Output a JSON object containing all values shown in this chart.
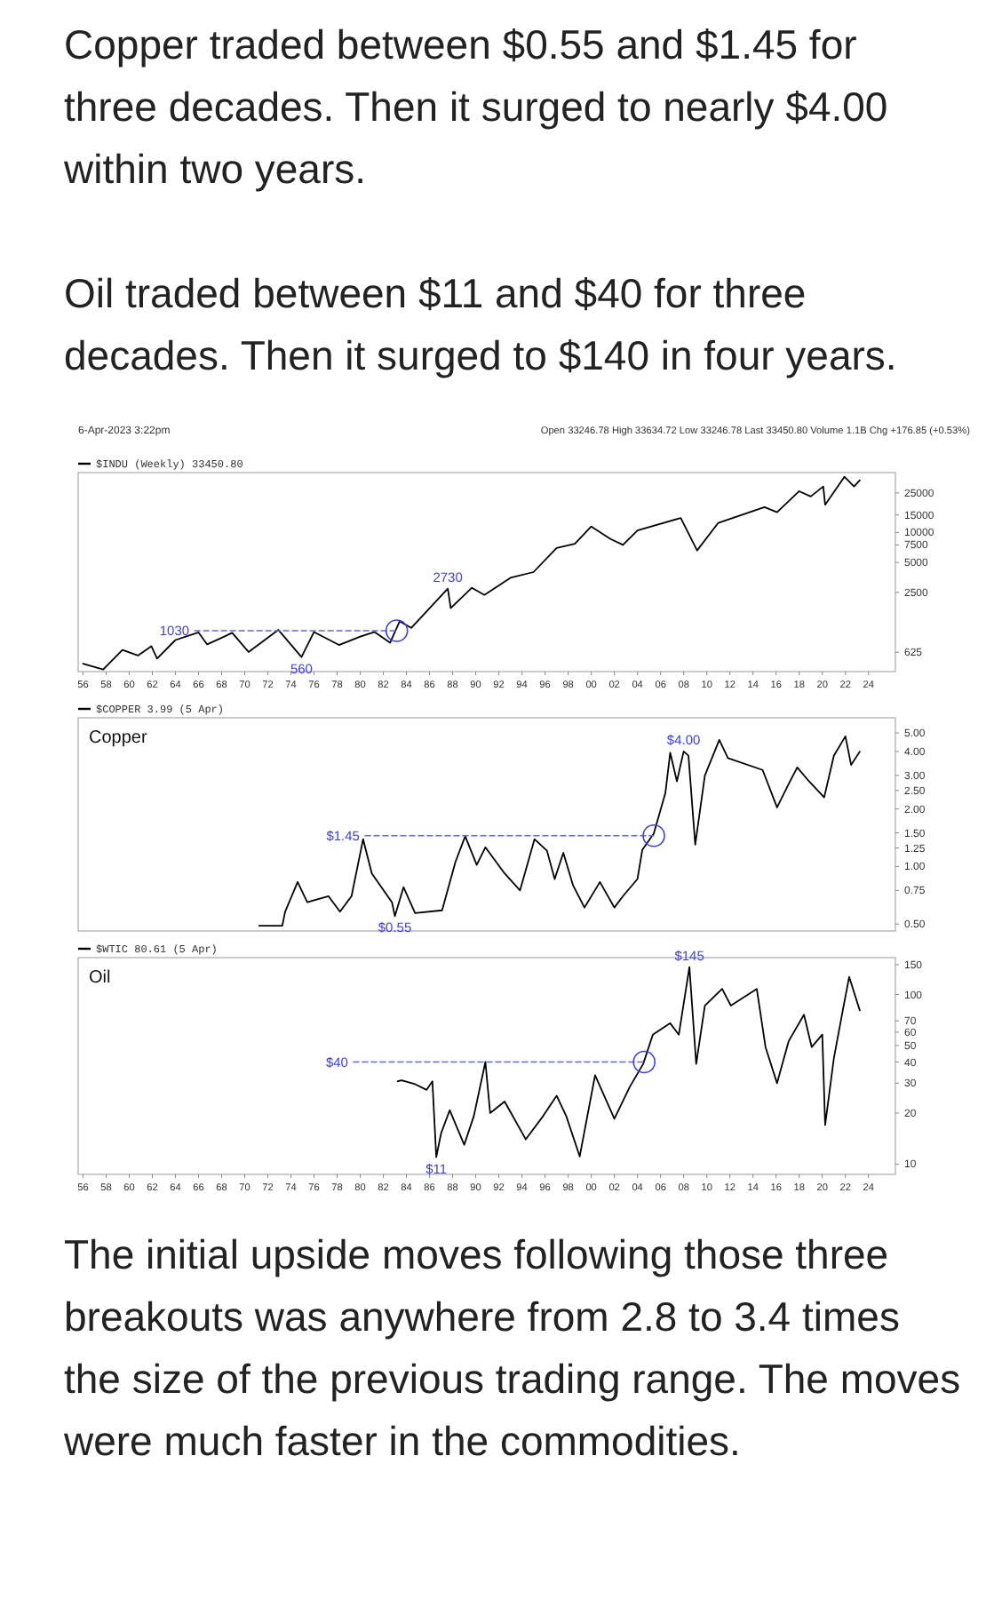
{
  "chart_data": [
    {
      "type": "line",
      "title": "Copper traded between $0.55 and $1.45 for three decades. Then it surged to nearly $4.00 within two years.",
      "subtitle": "Oil traded between $11 and $40 for three decades. Then it surged to $140 in four years.",
      "log": true,
      "legend": "top left",
      "xlim": [
        "1955-08",
        "2026-05"
      ],
      "xticks": [
        {
          "value": "1956",
          "label": "56"
        },
        {
          "value": "1958",
          "label": "58"
        },
        {
          "value": "1960",
          "label": "60"
        },
        {
          "value": "1962",
          "label": "62"
        },
        {
          "value": "1964",
          "label": "64"
        },
        {
          "value": "1966",
          "label": "66"
        },
        {
          "value": "1968",
          "label": "68"
        },
        {
          "value": "1970",
          "label": "70"
        },
        {
          "value": "1972",
          "label": "72"
        },
        {
          "value": "1974",
          "label": "74"
        },
        {
          "value": "1976",
          "label": "76"
        },
        {
          "value": "1978",
          "label": "78"
        },
        {
          "value": "1980",
          "label": "80"
        },
        {
          "value": "1982",
          "label": "82"
        },
        {
          "value": "1984",
          "label": "84"
        },
        {
          "value": "1986",
          "label": "86"
        },
        {
          "value": "1988",
          "label": "88"
        },
        {
          "value": "1990",
          "label": "90"
        },
        {
          "value": "1992",
          "label": "92"
        },
        {
          "value": "1994",
          "label": "94"
        },
        {
          "value": "1996",
          "label": "96"
        },
        {
          "value": "1998",
          "label": "98"
        },
        {
          "value": "2000",
          "label": "00"
        },
        {
          "value": "2002",
          "label": "02"
        },
        {
          "value": "2004",
          "label": "04"
        },
        {
          "value": "2006",
          "label": "06"
        },
        {
          "value": "2008",
          "label": "08"
        },
        {
          "value": "2010",
          "label": "10"
        },
        {
          "value": "2012",
          "label": "12"
        },
        {
          "value": "2014",
          "label": "14"
        },
        {
          "value": "2016",
          "label": "16"
        },
        {
          "value": "2018",
          "label": "18"
        },
        {
          "value": "2020",
          "label": "20"
        },
        {
          "value": "2022",
          "label": "22"
        },
        {
          "value": "2024",
          "label": "24"
        }
      ],
      "ylim": [
        400,
        40000
      ],
      "yticks": [
        625,
        2500,
        5000,
        7500,
        10000,
        15000,
        25000
      ],
      "series": [
        {
          "name": "$INDU (Weekly) 33450.80",
          "color": "#000000",
          "x": [
            "1956-01",
            "1957-10",
            "1959-06",
            "1960-10",
            "1961-12",
            "1962-06",
            "1964-01",
            "1966-01",
            "1966-10",
            "1968-12",
            "1970-05",
            "1972-12",
            "1974-12",
            "1976-01",
            "1978-03",
            "1980-01",
            "1981-04",
            "1982-08",
            "1983-06",
            "1984-06",
            "1987-08",
            "1987-11",
            "1989-09",
            "1990-10",
            "1993-01",
            "1995-01",
            "1997-01",
            "1998-08",
            "2000-01",
            "2001-09",
            "2002-10",
            "2004-01",
            "2007-10",
            "2009-03",
            "2011-01",
            "2015-01",
            "2016-02",
            "2018-01",
            "2019-01",
            "2020-02",
            "2020-04",
            "2021-12",
            "2022-10",
            "2023-04"
          ],
          "values": [
            480,
            420,
            660,
            580,
            720,
            540,
            830,
            990,
            750,
            980,
            630,
            1050,
            560,
            1000,
            740,
            900,
            1000,
            780,
            1280,
            1100,
            2730,
            1740,
            2780,
            2360,
            3500,
            4000,
            7000,
            7700,
            11500,
            8600,
            7500,
            10500,
            14000,
            6600,
            12500,
            18000,
            16000,
            26000,
            23000,
            29000,
            19000,
            36300,
            29000,
            33450
          ]
        },
        {
          "color": "#6666ee",
          "line_style": "dashed",
          "x": [
            "1965-09",
            "1983-03"
          ],
          "values": [
            1030,
            1030
          ]
        }
      ],
      "annotations": [
        "6-Apr-2023 3:22pm",
        "Open 33246.78 High 33634.72 Low 33246.78 Last 33450.80 Volume 1.1B Chg +176.85 (+0.53%)",
        {
          "text": "1030",
          "x": "1965-09",
          "y": 1030
        },
        {
          "text": "560",
          "x": "1974-12",
          "y": 560
        },
        {
          "text": "2730",
          "x": "1987-08",
          "y": 2730
        }
      ]
    },
    {
      "type": "line",
      "title": "Copper",
      "log": true,
      "legend": "top left",
      "tick_labels": "y",
      "xlim": [
        "1955-08",
        "2026-05"
      ],
      "ylim": [
        0.46,
        6.0
      ],
      "yticks": [
        {
          "value": 0.5,
          "label": "0.50"
        },
        {
          "value": 0.75,
          "label": "0.75"
        },
        {
          "value": 1,
          "label": "1.00"
        },
        {
          "value": 1.25,
          "label": "1.25"
        },
        {
          "value": 1.5,
          "label": "1.50"
        },
        {
          "value": 2,
          "label": "2.00"
        },
        {
          "value": 2.5,
          "label": "2.50"
        },
        {
          "value": 3,
          "label": "3.00"
        },
        {
          "value": 4,
          "label": "4.00"
        },
        {
          "value": 5,
          "label": "5.00"
        }
      ],
      "series": [
        {
          "name": "$COPPER 3.99 (5 Apr)",
          "color": "#000000",
          "x": [
            "1971-04",
            "1973-04",
            "1973-07",
            "1974-08",
            "1975-06",
            "1977-04",
            "1978-04",
            "1979-04",
            "1980-04",
            "1981-01",
            "1982-10",
            "1983-01",
            "1983-10",
            "1984-10",
            "1987-02",
            "1988-04",
            "1989-02",
            "1990-02",
            "1990-11",
            "1992-07",
            "1993-11",
            "1995-02",
            "1996-03",
            "1996-11",
            "1997-08",
            "1998-06",
            "1999-06",
            "2000-10",
            "2002-01",
            "2002-10",
            "2004-01",
            "2004-06",
            "2005-06",
            "2006-06",
            "2006-11",
            "2007-06",
            "2008-01",
            "2008-06",
            "2009-01",
            "2009-11",
            "2011-02",
            "2011-11",
            "2014-11",
            "2016-02",
            "2017-02",
            "2017-11",
            "2018-11",
            "2020-03",
            "2021-01",
            "2022-01",
            "2022-07",
            "2023-04"
          ],
          "values": [
            0.49,
            0.49,
            0.58,
            0.83,
            0.65,
            0.7,
            0.58,
            0.7,
            1.39,
            0.92,
            0.65,
            0.55,
            0.78,
            0.57,
            0.59,
            1.06,
            1.44,
            1.02,
            1.26,
            0.92,
            0.75,
            1.39,
            1.21,
            0.86,
            1.18,
            0.8,
            0.61,
            0.83,
            0.61,
            0.7,
            0.86,
            1.22,
            1.49,
            2.42,
            3.94,
            2.79,
            4.0,
            3.8,
            1.3,
            2.99,
            4.6,
            3.69,
            3.2,
            2.04,
            2.7,
            3.3,
            2.8,
            2.3,
            3.8,
            4.8,
            3.4,
            3.99
          ]
        },
        {
          "color": "#6666ee",
          "line_style": "dashed",
          "x": [
            "1980-06",
            "2005-06"
          ],
          "values": [
            1.45,
            1.45
          ]
        }
      ],
      "annotations": [
        {
          "text": "$1.45",
          "x": "1980-06",
          "y": 1.45
        },
        {
          "text": "$0.55",
          "x": "1983-01",
          "y": 0.55
        },
        {
          "text": "$4.00",
          "x": "2008-01",
          "y": 4.0
        }
      ]
    },
    {
      "type": "line",
      "title": "Oil",
      "log": true,
      "legend": "top left",
      "xlim": [
        "1955-08",
        "2026-05"
      ],
      "xticks": [
        {
          "value": "1956",
          "label": "56"
        },
        {
          "value": "1958",
          "label": "58"
        },
        {
          "value": "1960",
          "label": "60"
        },
        {
          "value": "1962",
          "label": "62"
        },
        {
          "value": "1964",
          "label": "64"
        },
        {
          "value": "1966",
          "label": "66"
        },
        {
          "value": "1968",
          "label": "68"
        },
        {
          "value": "1970",
          "label": "70"
        },
        {
          "value": "1972",
          "label": "72"
        },
        {
          "value": "1974",
          "label": "74"
        },
        {
          "value": "1976",
          "label": "76"
        },
        {
          "value": "1978",
          "label": "78"
        },
        {
          "value": "1980",
          "label": "80"
        },
        {
          "value": "1982",
          "label": "82"
        },
        {
          "value": "1984",
          "label": "84"
        },
        {
          "value": "1986",
          "label": "86"
        },
        {
          "value": "1988",
          "label": "88"
        },
        {
          "value": "1990",
          "label": "90"
        },
        {
          "value": "1992",
          "label": "92"
        },
        {
          "value": "1994",
          "label": "94"
        },
        {
          "value": "1996",
          "label": "96"
        },
        {
          "value": "1998",
          "label": "98"
        },
        {
          "value": "2000",
          "label": "00"
        },
        {
          "value": "2002",
          "label": "02"
        },
        {
          "value": "2004",
          "label": "04"
        },
        {
          "value": "2006",
          "label": "06"
        },
        {
          "value": "2008",
          "label": "08"
        },
        {
          "value": "2010",
          "label": "10"
        },
        {
          "value": "2012",
          "label": "12"
        },
        {
          "value": "2014",
          "label": "14"
        },
        {
          "value": "2016",
          "label": "16"
        },
        {
          "value": "2018",
          "label": "18"
        },
        {
          "value": "2020",
          "label": "20"
        },
        {
          "value": "2022",
          "label": "22"
        },
        {
          "value": "2024",
          "label": "24"
        }
      ],
      "ylim": [
        8.7,
        165
      ],
      "yticks": [
        10,
        20,
        30,
        40,
        50,
        60,
        70,
        100,
        150
      ],
      "series": [
        {
          "name": "$WTIC 80.61 (5 Apr)",
          "color": "#000000",
          "x": [
            "1983-04",
            "1983-08",
            "1984-10",
            "1985-10",
            "1986-04",
            "1986-08",
            "1987-01",
            "1987-10",
            "1989-01",
            "1989-11",
            "1990-11",
            "1991-04",
            "1992-07",
            "1994-05",
            "1995-11",
            "1997-01",
            "1997-11",
            "1999-01",
            "2000-05",
            "2002-01",
            "2003-05",
            "2004-07",
            "2005-05",
            "2006-11",
            "2007-08",
            "2008-07",
            "2009-02",
            "2009-11",
            "2011-05",
            "2012-02",
            "2014-05",
            "2015-02",
            "2016-02",
            "2017-02",
            "2018-06",
            "2019-02",
            "2020-01",
            "2020-04",
            "2021-01",
            "2021-10",
            "2022-05",
            "2023-04"
          ],
          "values": [
            30.8,
            31.2,
            29.6,
            27.4,
            30.8,
            11,
            15.2,
            20.8,
            13.0,
            19.2,
            40,
            20,
            23.4,
            14.0,
            19.2,
            25.3,
            19.2,
            11.1,
            33.4,
            18.5,
            28.5,
            39,
            58,
            67.7,
            58,
            145,
            39,
            86,
            108,
            86,
            108,
            49,
            30,
            53,
            76,
            49,
            58,
            17,
            42,
            79,
            127,
            80.61
          ]
        },
        {
          "color": "#6666ee",
          "line_style": "dashed",
          "x": [
            "1979-06",
            "2004-08"
          ],
          "values": [
            40,
            40
          ]
        }
      ],
      "annotations": [
        {
          "text": "$40",
          "x": "1979-06",
          "y": 40
        },
        {
          "text": "$11",
          "x": "1986-08",
          "y": 11
        },
        {
          "text": "$145",
          "x": "2008-07",
          "y": 145
        },
        "The initial upside moves following those three breakouts was anywhere from 2.8 to 3.4 times the size of the previous trading range. The moves were much faster in the commodities."
      ]
    }
  ]
}
